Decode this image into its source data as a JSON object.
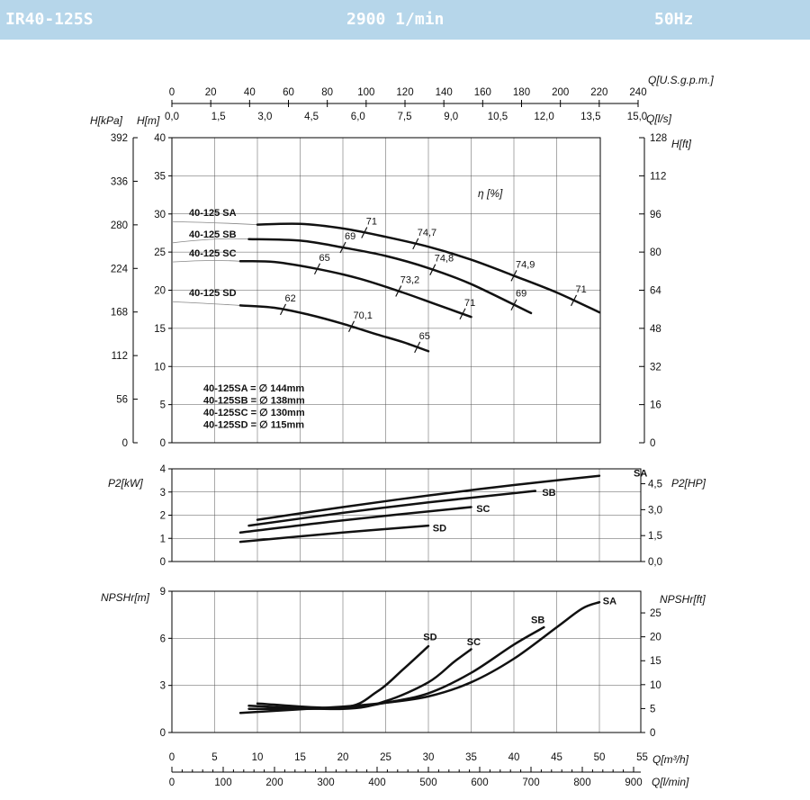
{
  "header": {
    "model": "IR40-125S",
    "speed": "2900 1/min",
    "frequency": "50Hz",
    "bar_color": "#b6d6ea"
  },
  "chart_data": [
    {
      "type": "line",
      "id": "head",
      "x_units": "m³/h",
      "xlim": [
        0,
        50
      ],
      "ylim": [
        0,
        40
      ],
      "left_axes": [
        {
          "label": "H[kPa]",
          "ticks": [
            0,
            56,
            112,
            168,
            224,
            280,
            336,
            392
          ]
        },
        {
          "label": "H[m]",
          "ticks": [
            0,
            5,
            10,
            15,
            20,
            25,
            30,
            35,
            40
          ]
        }
      ],
      "right_axis": {
        "label": "H[ft]",
        "ticks": [
          0,
          16,
          32,
          48,
          64,
          80,
          96,
          112,
          128
        ]
      },
      "top_axes": [
        {
          "label": "Q[U.S.g.p.m.]",
          "ticks": [
            "0",
            "20",
            "40",
            "60",
            "80",
            "100",
            "120",
            "140",
            "160",
            "180",
            "200",
            "220",
            "240"
          ]
        },
        {
          "label": "Q[l/s]",
          "ticks": [
            "0,0",
            "1,5",
            "3,0",
            "4,5",
            "6,0",
            "7,5",
            "9,0",
            "10,5",
            "12,0",
            "13,5",
            "15,0"
          ]
        }
      ],
      "efficiency_label": "η [%]",
      "grid": true,
      "series": [
        {
          "name": "40-125 SA",
          "label_pos": [
            2,
            30.2
          ],
          "x": [
            10,
            15,
            20,
            25,
            30,
            35,
            40,
            45,
            50
          ],
          "y": [
            28.6,
            28.7,
            28.1,
            27.0,
            25.7,
            24.0,
            21.9,
            19.7,
            17.1
          ],
          "efficiency": [
            {
              "x": 22.5,
              "label": "71"
            },
            {
              "x": 28.5,
              "label": "74,7"
            },
            {
              "x": 40,
              "label": "74,9"
            },
            {
              "x": 47,
              "label": "71"
            }
          ]
        },
        {
          "name": "40-125 SB",
          "label_pos": [
            2,
            27.4
          ],
          "x": [
            9,
            15,
            20,
            25,
            30,
            35,
            42
          ],
          "y": [
            26.7,
            26.5,
            25.6,
            24.5,
            22.9,
            20.8,
            17.0
          ],
          "efficiency": [
            {
              "x": 20,
              "label": "69"
            },
            {
              "x": 30.5,
              "label": "74,8"
            },
            {
              "x": 40,
              "label": "69"
            }
          ]
        },
        {
          "name": "40-125 SC",
          "label_pos": [
            2,
            24.9
          ],
          "x": [
            8,
            12,
            17,
            22,
            27,
            31,
            35
          ],
          "y": [
            23.8,
            23.7,
            22.8,
            21.5,
            19.7,
            18.1,
            16.5
          ],
          "efficiency": [
            {
              "x": 17,
              "label": "65"
            },
            {
              "x": 26.5,
              "label": "73,2"
            },
            {
              "x": 34,
              "label": "71"
            }
          ]
        },
        {
          "name": "40-125 SD",
          "label_pos": [
            2,
            19.7
          ],
          "x": [
            8,
            12,
            16,
            20,
            24,
            27,
            30
          ],
          "y": [
            18.0,
            17.7,
            16.8,
            15.6,
            14.2,
            13.2,
            12.0
          ],
          "efficiency": [
            {
              "x": 13,
              "label": "62"
            },
            {
              "x": 21,
              "label": "70,1"
            },
            {
              "x": 28.7,
              "label": "65"
            }
          ]
        }
      ],
      "impeller_notes": [
        "40-125SA = ∅ 144mm",
        "40-125SB = ∅ 138mm",
        "40-125SC = ∅ 130mm",
        "40-125SD = ∅ 115mm"
      ]
    },
    {
      "type": "line",
      "id": "power",
      "x_units": "m³/h",
      "xlim": [
        0,
        50
      ],
      "ylim": [
        0,
        4
      ],
      "left_axis": {
        "label": "P2[kW]",
        "ticks": [
          0,
          1,
          2,
          3,
          4
        ]
      },
      "right_axis": {
        "label": "P2[HP]",
        "ticks": [
          "0,0",
          "1,5",
          "3,0",
          "4,5"
        ]
      },
      "grid": true,
      "series": [
        {
          "name": "SA",
          "x": [
            10,
            20,
            30,
            40,
            50
          ],
          "y": [
            1.8,
            2.35,
            2.85,
            3.3,
            3.7
          ]
        },
        {
          "name": "SB",
          "x": [
            9,
            20,
            30,
            42.5
          ],
          "y": [
            1.55,
            2.1,
            2.55,
            3.05
          ]
        },
        {
          "name": "SC",
          "x": [
            8,
            20,
            35
          ],
          "y": [
            1.25,
            1.78,
            2.35
          ]
        },
        {
          "name": "SD",
          "x": [
            8,
            20,
            30
          ],
          "y": [
            0.85,
            1.25,
            1.55
          ]
        }
      ]
    },
    {
      "type": "line",
      "id": "npsh",
      "x_units": "m³/h",
      "xlim": [
        0,
        55
      ],
      "ylim": [
        0,
        9
      ],
      "left_axis": {
        "label": "NPSHr[m]",
        "ticks": [
          0,
          3,
          6,
          9
        ]
      },
      "right_axis": {
        "label": "NPSHr[ft]",
        "ticks": [
          0,
          5,
          10,
          15,
          20,
          25
        ]
      },
      "bottom_axes": [
        {
          "label": "Q[m³/h]",
          "ticks": [
            "0",
            "5",
            "10",
            "15",
            "20",
            "25",
            "30",
            "35",
            "40",
            "45",
            "50",
            "55"
          ]
        },
        {
          "label": "Q[l/min]",
          "ticks": [
            "0",
            "100",
            "200",
            "300",
            "400",
            "500",
            "600",
            "700",
            "800",
            "900"
          ]
        }
      ],
      "grid": true,
      "series": [
        {
          "name": "SA",
          "x": [
            8,
            20,
            25,
            30,
            35,
            40,
            45,
            48,
            50
          ],
          "y": [
            1.25,
            1.65,
            1.9,
            2.3,
            3.2,
            4.7,
            6.7,
            7.9,
            8.3
          ]
        },
        {
          "name": "SB",
          "x": [
            9,
            20,
            25,
            30,
            35,
            40,
            43.5
          ],
          "y": [
            1.5,
            1.55,
            1.9,
            2.5,
            3.8,
            5.6,
            6.7
          ]
        },
        {
          "name": "SC",
          "x": [
            9,
            20,
            25,
            30,
            33,
            35
          ],
          "y": [
            1.7,
            1.5,
            2.0,
            3.2,
            4.5,
            5.3
          ]
        },
        {
          "name": "SD",
          "x": [
            10,
            20,
            24,
            27,
            30
          ],
          "y": [
            1.85,
            1.6,
            2.6,
            4.0,
            5.5
          ]
        }
      ]
    }
  ]
}
